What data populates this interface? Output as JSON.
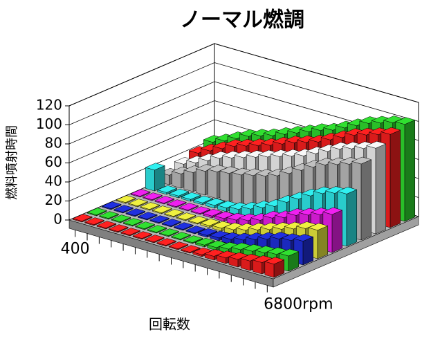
{
  "chart_data": {
    "type": "bar3d",
    "title": "ノーマル燃調",
    "y_label": "燃料噴射時間",
    "x_label": "回転数",
    "categories": [
      "400",
      null,
      null,
      null,
      null,
      null,
      null,
      null,
      null,
      null,
      null,
      null,
      null,
      null,
      null,
      null,
      "6800rpm"
    ],
    "ylim": [
      0,
      120
    ],
    "yticks": [
      0,
      20,
      40,
      60,
      80,
      100,
      120
    ],
    "grid": true,
    "series": [
      {
        "color": "#ff2020",
        "values": [
          1,
          1,
          1,
          1,
          1,
          1,
          1,
          1,
          1,
          1,
          2,
          4,
          6,
          8,
          10,
          12,
          14
        ]
      },
      {
        "color": "#30e030",
        "values": [
          1,
          1,
          1,
          1,
          1,
          1,
          1,
          1,
          1,
          2,
          3,
          5,
          8,
          10,
          12,
          14,
          16
        ]
      },
      {
        "color": "#2030e0",
        "values": [
          1,
          1,
          1,
          1,
          1,
          1,
          1,
          1,
          2,
          3,
          5,
          8,
          12,
          16,
          20,
          22,
          25
        ]
      },
      {
        "color": "#f0f040",
        "values": [
          1,
          1,
          1,
          1,
          1,
          1,
          1,
          2,
          3,
          5,
          8,
          12,
          16,
          20,
          24,
          28,
          30
        ]
      },
      {
        "color": "#f020f0",
        "values": [
          1,
          1,
          1,
          1,
          1,
          1,
          2,
          3,
          5,
          8,
          12,
          18,
          22,
          28,
          32,
          36,
          40
        ]
      },
      {
        "color": "#30f0f0",
        "values": [
          22,
          2,
          2,
          2,
          2,
          3,
          4,
          6,
          10,
          15,
          20,
          28,
          35,
          42,
          48,
          52,
          55
        ]
      },
      {
        "color": "#c0c0c0",
        "values": [
          10,
          15,
          20,
          25,
          28,
          30,
          32,
          35,
          38,
          42,
          48,
          55,
          62,
          68,
          72,
          76,
          80
        ]
      },
      {
        "color": "#f8f8f8",
        "values": [
          15,
          20,
          26,
          32,
          36,
          40,
          44,
          48,
          52,
          56,
          60,
          66,
          72,
          78,
          82,
          86,
          90
        ]
      },
      {
        "color": "#ff2020",
        "values": [
          20,
          26,
          32,
          38,
          42,
          46,
          50,
          55,
          60,
          64,
          68,
          74,
          80,
          86,
          90,
          94,
          98
        ]
      },
      {
        "color": "#30e030",
        "values": [
          25,
          30,
          36,
          42,
          46,
          50,
          55,
          60,
          65,
          70,
          74,
          80,
          86,
          92,
          96,
          100,
          102
        ]
      }
    ]
  }
}
